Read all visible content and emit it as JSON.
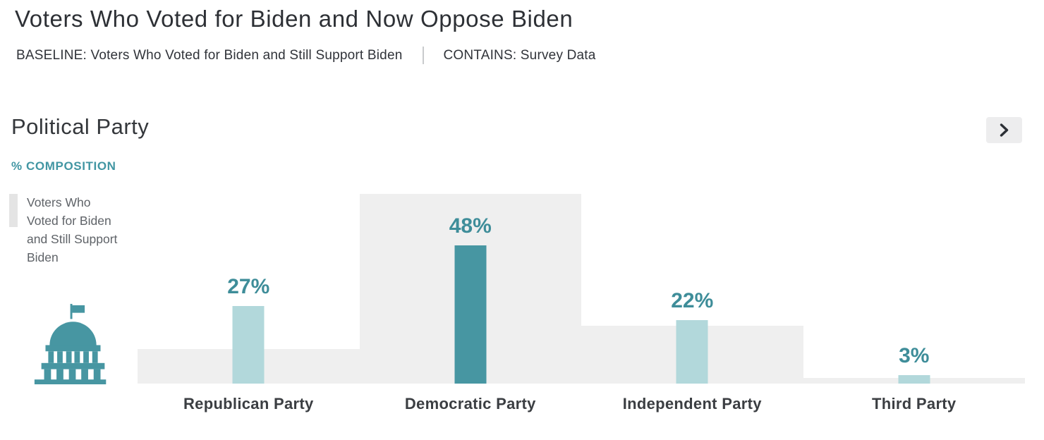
{
  "header": {
    "title": "Voters Who Voted for Biden and Now Oppose Biden",
    "baseline_text": "BASELINE: Voters Who Voted for Biden and Still Support Biden",
    "contains_text": "CONTAINS: Survey Data"
  },
  "section": {
    "title": "Political Party",
    "axis_label": "% COMPOSITION"
  },
  "legend": {
    "label": "Voters Who Voted for Biden and Still Support Biden",
    "icon": "capitol-building-icon",
    "icon_color": "#4796a2"
  },
  "chart_data": {
    "type": "bar",
    "title": "Political Party",
    "ylabel": "% COMPOSITION",
    "categories": [
      "Republican Party",
      "Democratic Party",
      "Independent Party",
      "Third Party"
    ],
    "series": [
      {
        "name": "Voters Who Voted for Biden and Now Oppose Biden",
        "values": [
          27,
          48,
          22,
          3
        ],
        "labels": [
          "27%",
          "48%",
          "22%",
          "3%"
        ]
      },
      {
        "name": "Voters Who Voted for Biden and Still Support Biden",
        "role": "baseline",
        "values": [
          12,
          66,
          20,
          2
        ]
      }
    ],
    "highlight_index": 1,
    "ylim": [
      0,
      67
    ],
    "grid": false,
    "legend_position": "left",
    "bar_value_suffix": "%"
  },
  "colors": {
    "accent": "#4296a3",
    "accent-dark": "#3e8d99",
    "bar-light": "#b2d8db",
    "bar-dark": "#4796a2",
    "baseline-gray": "#efefef",
    "legend-swatch": "#e4e4e4",
    "text-dark": "#2d3035",
    "text-gray": "#5f6368",
    "chevron-bg": "#ededee"
  }
}
